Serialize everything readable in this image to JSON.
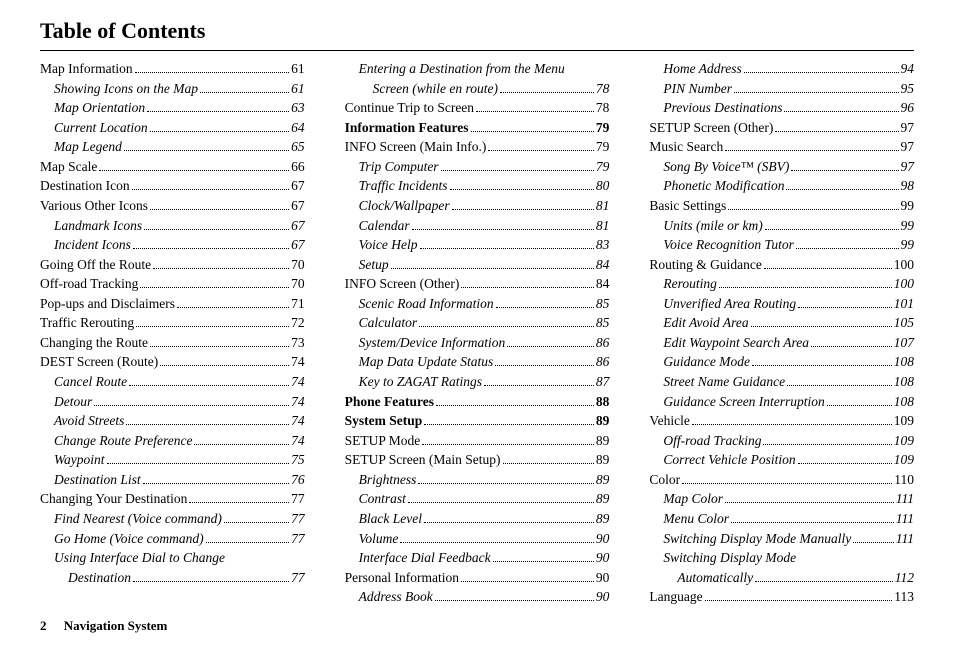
{
  "title": "Table of Contents",
  "footer": {
    "page_number": "2",
    "section": "Navigation System"
  },
  "columns": [
    {
      "items": [
        {
          "label": "Map Information",
          "page": "61",
          "level": 0
        },
        {
          "label": "Showing Icons on the Map",
          "page": "61",
          "level": 1
        },
        {
          "label": "Map Orientation",
          "page": "63",
          "level": 1
        },
        {
          "label": "Current Location",
          "page": "64",
          "level": 1
        },
        {
          "label": "Map Legend",
          "page": "65",
          "level": 1
        },
        {
          "label": "Map Scale",
          "page": "66",
          "level": 0
        },
        {
          "label": "Destination Icon",
          "page": "67",
          "level": 0
        },
        {
          "label": "Various Other Icons",
          "page": "67",
          "level": 0
        },
        {
          "label": "Landmark Icons",
          "page": "67",
          "level": 1
        },
        {
          "label": "Incident Icons",
          "page": "67",
          "level": 1
        },
        {
          "label": "Going Off the Route",
          "page": "70",
          "level": 0
        },
        {
          "label": "Off-road Tracking",
          "page": "70",
          "level": 0
        },
        {
          "label": "Pop-ups and Disclaimers",
          "page": "71",
          "level": 0
        },
        {
          "label": "Traffic Rerouting",
          "page": "72",
          "level": 0
        },
        {
          "label": "Changing the Route",
          "page": "73",
          "level": 0
        },
        {
          "label": "DEST Screen (Route)",
          "page": "74",
          "level": 0
        },
        {
          "label": "Cancel Route",
          "page": "74",
          "level": 1
        },
        {
          "label": "Detour",
          "page": "74",
          "level": 1
        },
        {
          "label": "Avoid Streets",
          "page": "74",
          "level": 1
        },
        {
          "label": "Change Route Preference",
          "page": "74",
          "level": 1
        },
        {
          "label": "Waypoint",
          "page": "75",
          "level": 1
        },
        {
          "label": "Destination List",
          "page": "76",
          "level": 1
        },
        {
          "label": "Changing Your Destination",
          "page": "77",
          "level": 0
        },
        {
          "label": "Find Nearest (Voice command)",
          "page": "77",
          "level": 1
        },
        {
          "label": "Go Home (Voice command)",
          "page": "77",
          "level": 1
        },
        {
          "label": "Using Interface Dial to Change",
          "level": 1,
          "nopage": true
        },
        {
          "label": "Destination",
          "page": "77",
          "level": 2
        }
      ]
    },
    {
      "items": [
        {
          "label": "Entering a Destination from the Menu",
          "level": 1,
          "nopage": true
        },
        {
          "label": "Screen (while en route)",
          "page": "78",
          "level": 2
        },
        {
          "label": "Continue Trip to Screen",
          "page": "78",
          "level": 0
        },
        {
          "label": "Information Features",
          "page": "79",
          "level": 0,
          "bold": true
        },
        {
          "label": "INFO Screen (Main Info.)",
          "page": "79",
          "level": 0
        },
        {
          "label": "Trip Computer",
          "page": "79",
          "level": 1
        },
        {
          "label": "Traffic Incidents",
          "page": "80",
          "level": 1
        },
        {
          "label": "Clock/Wallpaper",
          "page": "81",
          "level": 1
        },
        {
          "label": "Calendar",
          "page": "81",
          "level": 1
        },
        {
          "label": "Voice Help",
          "page": "83",
          "level": 1
        },
        {
          "label": "Setup",
          "page": "84",
          "level": 1
        },
        {
          "label": "INFO Screen (Other)",
          "page": "84",
          "level": 0
        },
        {
          "label": "Scenic Road Information",
          "page": "85",
          "level": 1
        },
        {
          "label": "Calculator",
          "page": "85",
          "level": 1
        },
        {
          "label": "System/Device Information",
          "page": "86",
          "level": 1
        },
        {
          "label": "Map Data Update Status",
          "page": "86",
          "level": 1
        },
        {
          "label": "Key to ZAGAT Ratings",
          "page": "87",
          "level": 1
        },
        {
          "label": "Phone Features",
          "page": "88",
          "level": 0,
          "bold": true
        },
        {
          "label": "System Setup",
          "page": "89",
          "level": 0,
          "bold": true
        },
        {
          "label": "SETUP Mode",
          "page": "89",
          "level": 0
        },
        {
          "label": "SETUP Screen (Main Setup)",
          "page": "89",
          "level": 0
        },
        {
          "label": "Brightness",
          "page": "89",
          "level": 1
        },
        {
          "label": "Contrast",
          "page": "89",
          "level": 1
        },
        {
          "label": "Black Level",
          "page": "89",
          "level": 1
        },
        {
          "label": "Volume",
          "page": "90",
          "level": 1
        },
        {
          "label": "Interface Dial Feedback",
          "page": "90",
          "level": 1
        },
        {
          "label": "Personal Information",
          "page": "90",
          "level": 0
        },
        {
          "label": "Address Book",
          "page": "90",
          "level": 1
        }
      ]
    },
    {
      "items": [
        {
          "label": "Home Address",
          "page": "94",
          "level": 1
        },
        {
          "label": "PIN Number",
          "page": "95",
          "level": 1
        },
        {
          "label": "Previous Destinations",
          "page": "96",
          "level": 1
        },
        {
          "label": "SETUP Screen (Other)",
          "page": "97",
          "level": 0
        },
        {
          "label": "Music Search",
          "page": "97",
          "level": 0
        },
        {
          "label": "Song By Voice™ (SBV)",
          "page": "97",
          "level": 1
        },
        {
          "label": "Phonetic Modification",
          "page": "98",
          "level": 1
        },
        {
          "label": "Basic Settings",
          "page": "99",
          "level": 0
        },
        {
          "label": "Units (mile or km)",
          "page": "99",
          "level": 1
        },
        {
          "label": "Voice Recognition Tutor",
          "page": "99",
          "level": 1
        },
        {
          "label": "Routing & Guidance",
          "page": "100",
          "level": 0
        },
        {
          "label": "Rerouting",
          "page": "100",
          "level": 1
        },
        {
          "label": "Unverified Area Routing",
          "page": "101",
          "level": 1
        },
        {
          "label": "Edit Avoid Area",
          "page": "105",
          "level": 1
        },
        {
          "label": "Edit Waypoint Search Area",
          "page": "107",
          "level": 1
        },
        {
          "label": "Guidance Mode",
          "page": "108",
          "level": 1
        },
        {
          "label": "Street Name Guidance",
          "page": "108",
          "level": 1
        },
        {
          "label": "Guidance Screen Interruption",
          "page": "108",
          "level": 1
        },
        {
          "label": "Vehicle",
          "page": "109",
          "level": 0
        },
        {
          "label": "Off-road Tracking",
          "page": "109",
          "level": 1
        },
        {
          "label": "Correct Vehicle Position",
          "page": "109",
          "level": 1
        },
        {
          "label": "Color",
          "page": "110",
          "level": 0
        },
        {
          "label": "Map Color",
          "page": "111",
          "level": 1
        },
        {
          "label": "Menu Color",
          "page": "111",
          "level": 1
        },
        {
          "label": "Switching Display Mode Manually",
          "page": "111",
          "level": 1
        },
        {
          "label": "Switching Display Mode",
          "level": 1,
          "nopage": true
        },
        {
          "label": "Automatically",
          "page": "112",
          "level": 2
        },
        {
          "label": "Language",
          "page": "113",
          "level": 0
        }
      ]
    }
  ]
}
